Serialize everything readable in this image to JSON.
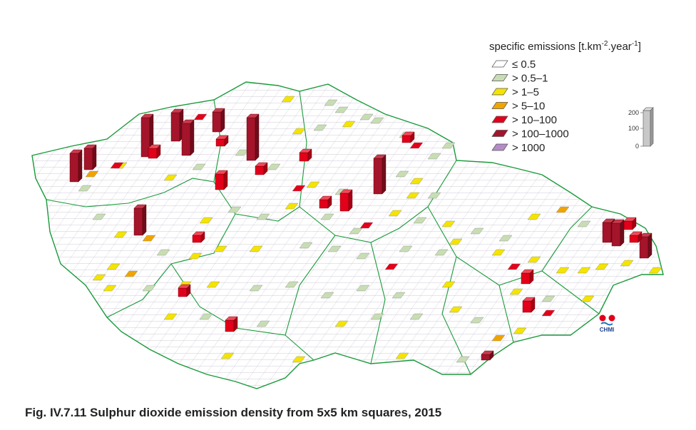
{
  "legend": {
    "title": {
      "text": "specific emissions [t.km",
      "sup1": "-2",
      "mid": ".year",
      "sup2": "-1",
      "end": "]"
    },
    "items": [
      {
        "label": "≤ 0.5",
        "color": "#ffffff"
      },
      {
        "label": "> 0.5–1",
        "color": "#c8ddb4"
      },
      {
        "label": "> 1–5",
        "color": "#f4e400"
      },
      {
        "label": "> 5–10",
        "color": "#f0a400"
      },
      {
        "label": "> 10–100",
        "color": "#e2001a"
      },
      {
        "label": "> 100–1000",
        "color": "#a4142a"
      },
      {
        "label": "> 1000",
        "color": "#b48cc8"
      }
    ],
    "scale_ticks": [
      200,
      100,
      0
    ]
  },
  "logo": "CHMI",
  "caption": "Fig. IV.7.11  Sulphur dioxide emission density from 5x5 km squares, 2015"
}
